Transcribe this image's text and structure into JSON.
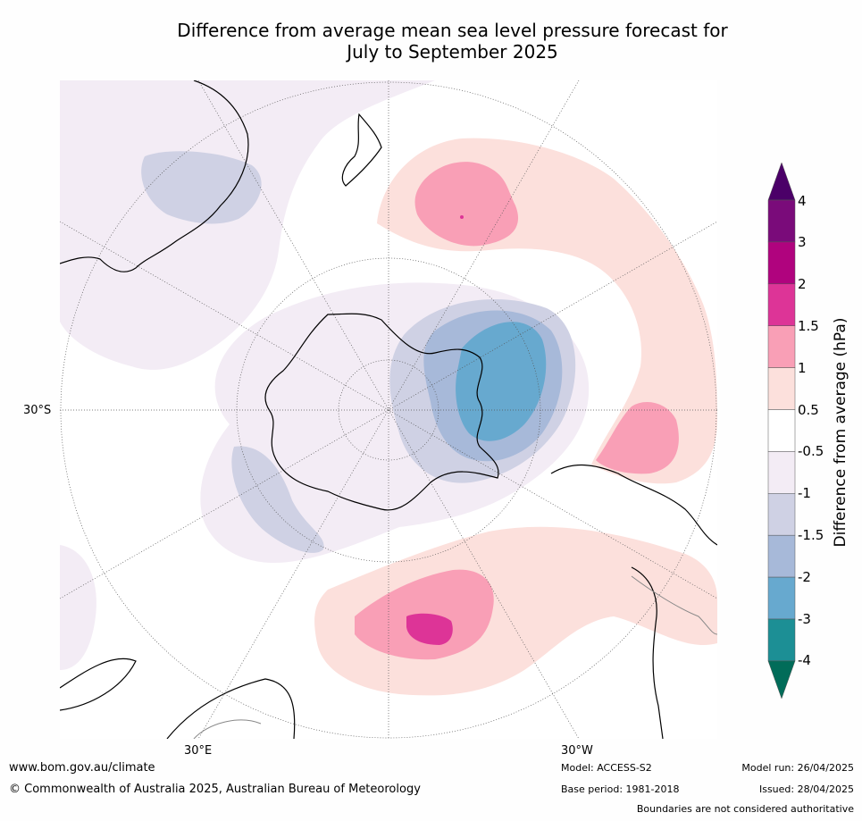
{
  "title": {
    "line1": "Difference from average mean sea level pressure forecast for",
    "line2": "July to September 2025"
  },
  "map": {
    "projection": "south-polar-stereographic",
    "longitude_labels": [
      "30°E",
      "30°W"
    ],
    "latitude_labels": [
      "30°S"
    ]
  },
  "colorbar": {
    "title": "Difference from average (hPa)",
    "ticks": [
      "4",
      "3",
      "2",
      "1.5",
      "1",
      "0.5",
      "-0.5",
      "-1",
      "-1.5",
      "-2",
      "-3",
      "-4"
    ],
    "levels": [
      {
        "range": "> 4",
        "color": "#4b0068"
      },
      {
        "range": "3 to 4",
        "color": "#7a0b7a"
      },
      {
        "range": "2 to 3",
        "color": "#b0037e"
      },
      {
        "range": "1.5 to 2",
        "color": "#dd3497"
      },
      {
        "range": "1 to 1.5",
        "color": "#f99fb6"
      },
      {
        "range": "0.5 to 1",
        "color": "#fce0dc"
      },
      {
        "range": "-0.5 to 0.5",
        "color": "#ffffff"
      },
      {
        "range": "-1 to -0.5",
        "color": "#f3ecf5"
      },
      {
        "range": "-1.5 to -1",
        "color": "#cfd1e4"
      },
      {
        "range": "-2 to -1.5",
        "color": "#a7b9d9"
      },
      {
        "range": "-3 to -2",
        "color": "#67a9cf"
      },
      {
        "range": "-4 to -3",
        "color": "#1c8f95"
      },
      {
        "range": "< -4",
        "color": "#016c59"
      }
    ]
  },
  "footer": {
    "website": "www.bom.gov.au/climate",
    "copyright": "© Commonwealth of Australia 2025, Australian Bureau of Meteorology",
    "model": "Model: ACCESS-S2",
    "base_period": "Base period: 1981-2018",
    "model_run": "Model run: 26/04/2025",
    "issued": "Issued: 28/04/2025",
    "disclaimer": "Boundaries are not considered authoritative"
  }
}
